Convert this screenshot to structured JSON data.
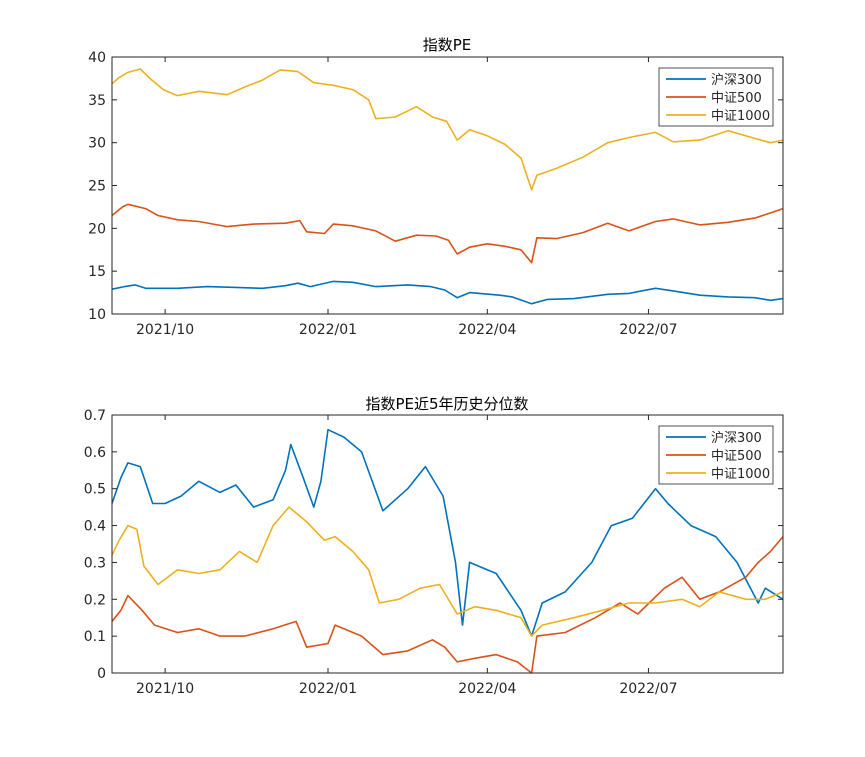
{
  "colors": {
    "hs300": "#0072BD",
    "zz500": "#D95319",
    "zz1000": "#EDB120",
    "axis": "#262626",
    "background": "#ffffff"
  },
  "chart_data": [
    {
      "type": "line",
      "title": "指数PE",
      "xlabel": "",
      "ylabel": "",
      "x_range": [
        "2021-09-01",
        "2022-09-15"
      ],
      "ylim": [
        10,
        40
      ],
      "yticks": [
        10,
        15,
        20,
        25,
        30,
        35,
        40
      ],
      "xticks": [
        {
          "date": "2021-10-01",
          "label": "2021/10"
        },
        {
          "date": "2022-01-01",
          "label": "2022/01"
        },
        {
          "date": "2022-04-01",
          "label": "2022/04"
        },
        {
          "date": "2022-07-01",
          "label": "2022/07"
        }
      ],
      "grid": false,
      "legend_position": "top-right",
      "series": [
        {
          "name": "沪深300",
          "color": "#0072BD",
          "points": [
            [
              "2021-09-01",
              12.9
            ],
            [
              "2021-09-08",
              13.2
            ],
            [
              "2021-09-14",
              13.4
            ],
            [
              "2021-09-20",
              13.0
            ],
            [
              "2021-10-08",
              13.0
            ],
            [
              "2021-10-25",
              13.2
            ],
            [
              "2021-11-10",
              13.1
            ],
            [
              "2021-11-25",
              13.0
            ],
            [
              "2021-12-08",
              13.3
            ],
            [
              "2021-12-15",
              13.6
            ],
            [
              "2021-12-22",
              13.2
            ],
            [
              "2022-01-04",
              13.8
            ],
            [
              "2022-01-15",
              13.7
            ],
            [
              "2022-01-28",
              13.2
            ],
            [
              "2022-02-15",
              13.4
            ],
            [
              "2022-02-28",
              13.2
            ],
            [
              "2022-03-08",
              12.8
            ],
            [
              "2022-03-15",
              11.9
            ],
            [
              "2022-03-22",
              12.5
            ],
            [
              "2022-04-08",
              12.2
            ],
            [
              "2022-04-15",
              12.0
            ],
            [
              "2022-04-26",
              11.2
            ],
            [
              "2022-05-05",
              11.7
            ],
            [
              "2022-05-20",
              11.8
            ],
            [
              "2022-06-08",
              12.3
            ],
            [
              "2022-06-20",
              12.4
            ],
            [
              "2022-07-05",
              13.0
            ],
            [
              "2022-07-15",
              12.7
            ],
            [
              "2022-07-30",
              12.2
            ],
            [
              "2022-08-15",
              12.0
            ],
            [
              "2022-08-30",
              11.9
            ],
            [
              "2022-09-08",
              11.6
            ],
            [
              "2022-09-15",
              11.8
            ]
          ]
        },
        {
          "name": "中证500",
          "color": "#D95319",
          "points": [
            [
              "2021-09-01",
              21.5
            ],
            [
              "2021-09-07",
              22.5
            ],
            [
              "2021-09-10",
              22.8
            ],
            [
              "2021-09-20",
              22.3
            ],
            [
              "2021-09-27",
              21.5
            ],
            [
              "2021-10-08",
              21.0
            ],
            [
              "2021-10-20",
              20.8
            ],
            [
              "2021-11-05",
              20.2
            ],
            [
              "2021-11-20",
              20.5
            ],
            [
              "2021-12-08",
              20.6
            ],
            [
              "2021-12-16",
              20.9
            ],
            [
              "2021-12-20",
              19.6
            ],
            [
              "2021-12-30",
              19.4
            ],
            [
              "2022-01-04",
              20.5
            ],
            [
              "2022-01-15",
              20.3
            ],
            [
              "2022-01-28",
              19.7
            ],
            [
              "2022-02-08",
              18.5
            ],
            [
              "2022-02-20",
              19.2
            ],
            [
              "2022-03-03",
              19.1
            ],
            [
              "2022-03-10",
              18.6
            ],
            [
              "2022-03-15",
              17.0
            ],
            [
              "2022-03-22",
              17.8
            ],
            [
              "2022-04-01",
              18.2
            ],
            [
              "2022-04-11",
              17.9
            ],
            [
              "2022-04-20",
              17.5
            ],
            [
              "2022-04-26",
              16.0
            ],
            [
              "2022-04-29",
              18.9
            ],
            [
              "2022-05-10",
              18.8
            ],
            [
              "2022-05-25",
              19.5
            ],
            [
              "2022-06-08",
              20.6
            ],
            [
              "2022-06-20",
              19.7
            ],
            [
              "2022-07-05",
              20.8
            ],
            [
              "2022-07-15",
              21.1
            ],
            [
              "2022-07-30",
              20.4
            ],
            [
              "2022-08-15",
              20.7
            ],
            [
              "2022-08-30",
              21.2
            ],
            [
              "2022-09-08",
              21.8
            ],
            [
              "2022-09-15",
              22.3
            ]
          ]
        },
        {
          "name": "中证1000",
          "color": "#EDB120",
          "points": [
            [
              "2021-09-01",
              36.9
            ],
            [
              "2021-09-05",
              37.6
            ],
            [
              "2021-09-10",
              38.2
            ],
            [
              "2021-09-17",
              38.6
            ],
            [
              "2021-09-23",
              37.4
            ],
            [
              "2021-09-30",
              36.2
            ],
            [
              "2021-10-08",
              35.5
            ],
            [
              "2021-10-20",
              36.0
            ],
            [
              "2021-11-05",
              35.6
            ],
            [
              "2021-11-15",
              36.5
            ],
            [
              "2021-11-25",
              37.3
            ],
            [
              "2021-12-05",
              38.5
            ],
            [
              "2021-12-15",
              38.3
            ],
            [
              "2021-12-24",
              37.0
            ],
            [
              "2022-01-04",
              36.7
            ],
            [
              "2022-01-15",
              36.2
            ],
            [
              "2022-01-24",
              35.0
            ],
            [
              "2022-01-28",
              32.8
            ],
            [
              "2022-02-08",
              33.0
            ],
            [
              "2022-02-20",
              34.2
            ],
            [
              "2022-03-01",
              33.0
            ],
            [
              "2022-03-09",
              32.5
            ],
            [
              "2022-03-15",
              30.3
            ],
            [
              "2022-03-22",
              31.5
            ],
            [
              "2022-04-01",
              30.8
            ],
            [
              "2022-04-11",
              29.8
            ],
            [
              "2022-04-20",
              28.2
            ],
            [
              "2022-04-26",
              24.5
            ],
            [
              "2022-04-29",
              26.2
            ],
            [
              "2022-05-10",
              27.0
            ],
            [
              "2022-05-25",
              28.3
            ],
            [
              "2022-06-08",
              30.0
            ],
            [
              "2022-06-20",
              30.6
            ],
            [
              "2022-07-05",
              31.2
            ],
            [
              "2022-07-15",
              30.1
            ],
            [
              "2022-07-30",
              30.3
            ],
            [
              "2022-08-15",
              31.4
            ],
            [
              "2022-08-30",
              30.5
            ],
            [
              "2022-09-08",
              30.0
            ],
            [
              "2022-09-15",
              30.3
            ]
          ]
        }
      ]
    },
    {
      "type": "line",
      "title": "指数PE近5年历史分位数",
      "xlabel": "",
      "ylabel": "",
      "x_range": [
        "2021-09-01",
        "2022-09-15"
      ],
      "ylim": [
        0,
        0.7
      ],
      "yticks": [
        0,
        0.1,
        0.2,
        0.3,
        0.4,
        0.5,
        0.6,
        0.7
      ],
      "xticks": [
        {
          "date": "2021-10-01",
          "label": "2021/10"
        },
        {
          "date": "2022-01-01",
          "label": "2022/01"
        },
        {
          "date": "2022-04-01",
          "label": "2022/04"
        },
        {
          "date": "2022-07-01",
          "label": "2022/07"
        }
      ],
      "grid": false,
      "legend_position": "top-right",
      "series": [
        {
          "name": "沪深300",
          "color": "#0072BD",
          "points": [
            [
              "2021-09-01",
              0.46
            ],
            [
              "2021-09-06",
              0.53
            ],
            [
              "2021-09-10",
              0.57
            ],
            [
              "2021-09-17",
              0.56
            ],
            [
              "2021-09-24",
              0.46
            ],
            [
              "2021-10-01",
              0.46
            ],
            [
              "2021-10-10",
              0.48
            ],
            [
              "2021-10-20",
              0.52
            ],
            [
              "2021-11-01",
              0.49
            ],
            [
              "2021-11-10",
              0.51
            ],
            [
              "2021-11-20",
              0.45
            ],
            [
              "2021-12-01",
              0.47
            ],
            [
              "2021-12-08",
              0.55
            ],
            [
              "2021-12-11",
              0.62
            ],
            [
              "2021-12-18",
              0.53
            ],
            [
              "2021-12-24",
              0.45
            ],
            [
              "2021-12-28",
              0.52
            ],
            [
              "2022-01-01",
              0.66
            ],
            [
              "2022-01-10",
              0.64
            ],
            [
              "2022-01-20",
              0.6
            ],
            [
              "2022-02-01",
              0.44
            ],
            [
              "2022-02-15",
              0.5
            ],
            [
              "2022-02-25",
              0.56
            ],
            [
              "2022-03-07",
              0.48
            ],
            [
              "2022-03-14",
              0.3
            ],
            [
              "2022-03-18",
              0.13
            ],
            [
              "2022-03-22",
              0.3
            ],
            [
              "2022-04-06",
              0.27
            ],
            [
              "2022-04-20",
              0.17
            ],
            [
              "2022-04-26",
              0.1
            ],
            [
              "2022-05-02",
              0.19
            ],
            [
              "2022-05-15",
              0.22
            ],
            [
              "2022-05-30",
              0.3
            ],
            [
              "2022-06-10",
              0.4
            ],
            [
              "2022-06-22",
              0.42
            ],
            [
              "2022-07-05",
              0.5
            ],
            [
              "2022-07-12",
              0.46
            ],
            [
              "2022-07-25",
              0.4
            ],
            [
              "2022-08-08",
              0.37
            ],
            [
              "2022-08-20",
              0.3
            ],
            [
              "2022-09-01",
              0.19
            ],
            [
              "2022-09-05",
              0.23
            ],
            [
              "2022-09-15",
              0.2
            ]
          ]
        },
        {
          "name": "中证500",
          "color": "#D95319",
          "points": [
            [
              "2021-09-01",
              0.14
            ],
            [
              "2021-09-06",
              0.17
            ],
            [
              "2021-09-10",
              0.21
            ],
            [
              "2021-09-18",
              0.17
            ],
            [
              "2021-09-25",
              0.13
            ],
            [
              "2021-10-08",
              0.11
            ],
            [
              "2021-10-20",
              0.12
            ],
            [
              "2021-11-01",
              0.1
            ],
            [
              "2021-11-15",
              0.1
            ],
            [
              "2021-12-01",
              0.12
            ],
            [
              "2021-12-14",
              0.14
            ],
            [
              "2021-12-20",
              0.07
            ],
            [
              "2022-01-01",
              0.08
            ],
            [
              "2022-01-05",
              0.13
            ],
            [
              "2022-01-20",
              0.1
            ],
            [
              "2022-02-01",
              0.05
            ],
            [
              "2022-02-15",
              0.06
            ],
            [
              "2022-03-01",
              0.09
            ],
            [
              "2022-03-08",
              0.07
            ],
            [
              "2022-03-15",
              0.03
            ],
            [
              "2022-03-25",
              0.04
            ],
            [
              "2022-04-06",
              0.05
            ],
            [
              "2022-04-18",
              0.03
            ],
            [
              "2022-04-26",
              0.0
            ],
            [
              "2022-04-29",
              0.1
            ],
            [
              "2022-05-15",
              0.11
            ],
            [
              "2022-06-01",
              0.15
            ],
            [
              "2022-06-15",
              0.19
            ],
            [
              "2022-06-25",
              0.16
            ],
            [
              "2022-07-10",
              0.23
            ],
            [
              "2022-07-20",
              0.26
            ],
            [
              "2022-07-30",
              0.2
            ],
            [
              "2022-08-10",
              0.22
            ],
            [
              "2022-08-25",
              0.26
            ],
            [
              "2022-09-01",
              0.3
            ],
            [
              "2022-09-08",
              0.33
            ],
            [
              "2022-09-15",
              0.37
            ]
          ]
        },
        {
          "name": "中证1000",
          "color": "#EDB120",
          "points": [
            [
              "2021-09-01",
              0.32
            ],
            [
              "2021-09-05",
              0.36
            ],
            [
              "2021-09-10",
              0.4
            ],
            [
              "2021-09-15",
              0.39
            ],
            [
              "2021-09-19",
              0.29
            ],
            [
              "2021-09-27",
              0.24
            ],
            [
              "2021-10-08",
              0.28
            ],
            [
              "2021-10-20",
              0.27
            ],
            [
              "2021-11-01",
              0.28
            ],
            [
              "2021-11-12",
              0.33
            ],
            [
              "2021-11-22",
              0.3
            ],
            [
              "2021-12-01",
              0.4
            ],
            [
              "2021-12-10",
              0.45
            ],
            [
              "2021-12-20",
              0.41
            ],
            [
              "2021-12-30",
              0.36
            ],
            [
              "2022-01-05",
              0.37
            ],
            [
              "2022-01-15",
              0.33
            ],
            [
              "2022-01-24",
              0.28
            ],
            [
              "2022-01-30",
              0.19
            ],
            [
              "2022-02-10",
              0.2
            ],
            [
              "2022-02-22",
              0.23
            ],
            [
              "2022-03-05",
              0.24
            ],
            [
              "2022-03-15",
              0.16
            ],
            [
              "2022-03-25",
              0.18
            ],
            [
              "2022-04-06",
              0.17
            ],
            [
              "2022-04-20",
              0.15
            ],
            [
              "2022-04-26",
              0.1
            ],
            [
              "2022-05-02",
              0.13
            ],
            [
              "2022-05-20",
              0.15
            ],
            [
              "2022-06-05",
              0.17
            ],
            [
              "2022-06-20",
              0.19
            ],
            [
              "2022-07-05",
              0.19
            ],
            [
              "2022-07-20",
              0.2
            ],
            [
              "2022-07-30",
              0.18
            ],
            [
              "2022-08-10",
              0.22
            ],
            [
              "2022-08-25",
              0.2
            ],
            [
              "2022-09-05",
              0.2
            ],
            [
              "2022-09-15",
              0.22
            ]
          ]
        }
      ]
    }
  ]
}
